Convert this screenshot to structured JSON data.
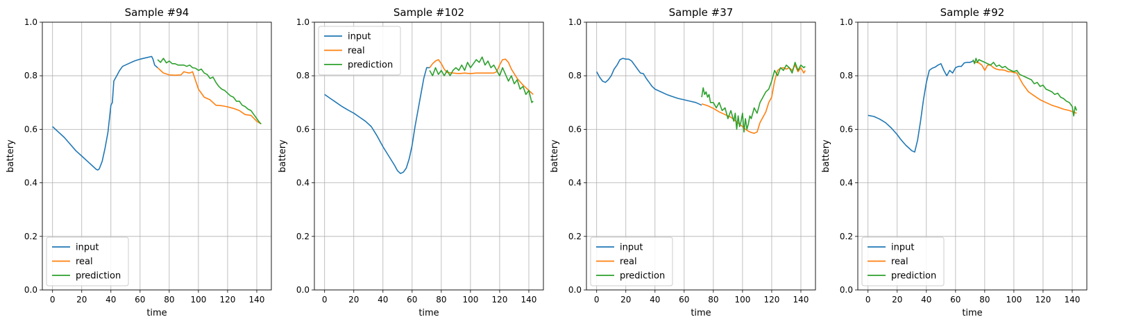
{
  "figure": {
    "xlabel": "time",
    "ylabel": "battery",
    "xlim": [
      -7,
      150
    ],
    "ylim": [
      0,
      1
    ],
    "xticks": [
      "0",
      "20",
      "40",
      "60",
      "80",
      "100",
      "120",
      "140"
    ],
    "yticks": [
      "0.0",
      "0.2",
      "0.4",
      "0.6",
      "0.8",
      "1.0"
    ],
    "grid": true,
    "colors": {
      "input": "#1f77b4",
      "real": "#ff7f0e",
      "prediction": "#2ca02c"
    },
    "legend_labels": [
      "input",
      "real",
      "prediction"
    ]
  },
  "chart_data": [
    {
      "type": "line",
      "title": "Sample #94",
      "legend": "lower-left",
      "series": [
        {
          "name": "input",
          "x": [
            0,
            4,
            8,
            12,
            16,
            20,
            24,
            28,
            30,
            31,
            32,
            34,
            36,
            38,
            40,
            41,
            42,
            44,
            46,
            48,
            52,
            56,
            60,
            64,
            68,
            69,
            70,
            72
          ],
          "y": [
            0.61,
            0.59,
            0.57,
            0.545,
            0.52,
            0.5,
            0.48,
            0.46,
            0.45,
            0.448,
            0.452,
            0.48,
            0.53,
            0.59,
            0.69,
            0.7,
            0.78,
            0.8,
            0.82,
            0.835,
            0.845,
            0.855,
            0.862,
            0.867,
            0.872,
            0.86,
            0.84,
            0.83
          ]
        },
        {
          "name": "real",
          "x": [
            72,
            74,
            76,
            80,
            84,
            88,
            90,
            92,
            94,
            96,
            100,
            104,
            108,
            112,
            116,
            120,
            124,
            128,
            132,
            136,
            140,
            143
          ],
          "y": [
            0.83,
            0.82,
            0.81,
            0.803,
            0.802,
            0.803,
            0.815,
            0.812,
            0.81,
            0.815,
            0.75,
            0.72,
            0.71,
            0.69,
            0.688,
            0.684,
            0.678,
            0.67,
            0.655,
            0.652,
            0.63,
            0.62
          ]
        },
        {
          "name": "prediction",
          "x": [
            72,
            74,
            76,
            78,
            80,
            82,
            84,
            86,
            88,
            90,
            92,
            94,
            96,
            98,
            100,
            102,
            104,
            106,
            108,
            110,
            112,
            114,
            116,
            118,
            120,
            122,
            124,
            126,
            128,
            130,
            132,
            134,
            136,
            138,
            140,
            142,
            143
          ],
          "y": [
            0.86,
            0.85,
            0.865,
            0.848,
            0.855,
            0.845,
            0.845,
            0.84,
            0.84,
            0.84,
            0.835,
            0.84,
            0.83,
            0.828,
            0.82,
            0.825,
            0.81,
            0.805,
            0.79,
            0.795,
            0.775,
            0.76,
            0.75,
            0.745,
            0.735,
            0.725,
            0.72,
            0.705,
            0.705,
            0.69,
            0.685,
            0.675,
            0.67,
            0.655,
            0.64,
            0.625,
            0.62
          ]
        }
      ]
    },
    {
      "type": "line",
      "title": "Sample #102",
      "legend": "upper-left",
      "series": [
        {
          "name": "input",
          "x": [
            0,
            4,
            8,
            12,
            16,
            20,
            24,
            28,
            32,
            36,
            40,
            44,
            48,
            50,
            52,
            54,
            56,
            58,
            60,
            62,
            64,
            66,
            68,
            70,
            72
          ],
          "y": [
            0.73,
            0.715,
            0.7,
            0.685,
            0.672,
            0.66,
            0.645,
            0.63,
            0.61,
            0.575,
            0.535,
            0.5,
            0.465,
            0.445,
            0.435,
            0.44,
            0.455,
            0.49,
            0.54,
            0.61,
            0.67,
            0.73,
            0.79,
            0.83,
            0.83
          ]
        },
        {
          "name": "real",
          "x": [
            72,
            74,
            76,
            78,
            80,
            82,
            84,
            88,
            92,
            96,
            100,
            104,
            108,
            112,
            116,
            118,
            120,
            122,
            124,
            126,
            128,
            132,
            136,
            140,
            143
          ],
          "y": [
            0.83,
            0.845,
            0.855,
            0.86,
            0.845,
            0.825,
            0.812,
            0.81,
            0.808,
            0.81,
            0.808,
            0.81,
            0.81,
            0.81,
            0.81,
            0.815,
            0.84,
            0.86,
            0.862,
            0.85,
            0.825,
            0.79,
            0.765,
            0.745,
            0.73
          ]
        },
        {
          "name": "prediction",
          "x": [
            72,
            74,
            76,
            78,
            80,
            82,
            84,
            86,
            88,
            90,
            92,
            94,
            96,
            98,
            100,
            102,
            104,
            106,
            108,
            110,
            112,
            114,
            116,
            118,
            120,
            122,
            124,
            126,
            128,
            130,
            132,
            134,
            136,
            138,
            140,
            142,
            143
          ],
          "y": [
            0.82,
            0.8,
            0.83,
            0.805,
            0.82,
            0.8,
            0.82,
            0.8,
            0.82,
            0.83,
            0.82,
            0.84,
            0.82,
            0.85,
            0.83,
            0.845,
            0.86,
            0.85,
            0.87,
            0.84,
            0.855,
            0.83,
            0.84,
            0.82,
            0.8,
            0.83,
            0.805,
            0.78,
            0.8,
            0.77,
            0.785,
            0.75,
            0.76,
            0.73,
            0.745,
            0.7,
            0.705
          ]
        }
      ]
    },
    {
      "type": "line",
      "title": "Sample #37",
      "legend": "lower-left",
      "series": [
        {
          "name": "input",
          "x": [
            0,
            2,
            4,
            6,
            8,
            10,
            12,
            14,
            16,
            18,
            20,
            22,
            24,
            26,
            28,
            30,
            32,
            34,
            36,
            38,
            40,
            44,
            48,
            52,
            56,
            60,
            64,
            68,
            72
          ],
          "y": [
            0.815,
            0.795,
            0.78,
            0.775,
            0.785,
            0.8,
            0.825,
            0.84,
            0.86,
            0.865,
            0.862,
            0.862,
            0.855,
            0.84,
            0.825,
            0.81,
            0.808,
            0.79,
            0.775,
            0.76,
            0.75,
            0.74,
            0.73,
            0.722,
            0.715,
            0.71,
            0.705,
            0.7,
            0.69
          ]
        },
        {
          "name": "real",
          "x": [
            72,
            76,
            80,
            84,
            88,
            92,
            96,
            100,
            102,
            104,
            106,
            108,
            110,
            112,
            114,
            116,
            118,
            120,
            122,
            124,
            126,
            128,
            130,
            132,
            134,
            136,
            138,
            140,
            142,
            143
          ],
          "y": [
            0.695,
            0.688,
            0.678,
            0.665,
            0.655,
            0.645,
            0.628,
            0.61,
            0.6,
            0.593,
            0.588,
            0.585,
            0.59,
            0.625,
            0.645,
            0.665,
            0.7,
            0.72,
            0.78,
            0.82,
            0.828,
            0.83,
            0.825,
            0.83,
            0.82,
            0.84,
            0.815,
            0.83,
            0.81,
            0.82
          ]
        },
        {
          "name": "prediction",
          "x": [
            72,
            73,
            74,
            75,
            76,
            77,
            78,
            80,
            82,
            84,
            86,
            88,
            90,
            92,
            94,
            95,
            96,
            97,
            98,
            99,
            100,
            101,
            102,
            103,
            104,
            105,
            106,
            108,
            110,
            112,
            114,
            116,
            118,
            120,
            122,
            124,
            126,
            128,
            130,
            132,
            134,
            136,
            138,
            140,
            142,
            143
          ],
          "y": [
            0.72,
            0.755,
            0.73,
            0.74,
            0.72,
            0.73,
            0.7,
            0.7,
            0.68,
            0.7,
            0.67,
            0.68,
            0.64,
            0.67,
            0.63,
            0.66,
            0.6,
            0.65,
            0.61,
            0.63,
            0.66,
            0.59,
            0.64,
            0.6,
            0.62,
            0.65,
            0.64,
            0.68,
            0.66,
            0.7,
            0.72,
            0.74,
            0.75,
            0.78,
            0.82,
            0.8,
            0.83,
            0.82,
            0.84,
            0.83,
            0.81,
            0.85,
            0.82,
            0.84,
            0.83,
            0.835
          ]
        }
      ]
    },
    {
      "type": "line",
      "title": "Sample #92",
      "legend": "lower-left",
      "series": [
        {
          "name": "input",
          "x": [
            0,
            4,
            8,
            12,
            16,
            20,
            22,
            24,
            26,
            28,
            30,
            32,
            34,
            36,
            38,
            40,
            42,
            44,
            46,
            48,
            50,
            52,
            54,
            56,
            58,
            60,
            62,
            64,
            66,
            68,
            70,
            72
          ],
          "y": [
            0.652,
            0.648,
            0.638,
            0.625,
            0.605,
            0.58,
            0.565,
            0.552,
            0.54,
            0.53,
            0.52,
            0.515,
            0.56,
            0.63,
            0.71,
            0.775,
            0.82,
            0.828,
            0.832,
            0.84,
            0.845,
            0.82,
            0.8,
            0.82,
            0.81,
            0.83,
            0.835,
            0.835,
            0.848,
            0.85,
            0.85,
            0.855
          ]
        },
        {
          "name": "real",
          "x": [
            72,
            74,
            76,
            78,
            80,
            82,
            84,
            86,
            88,
            90,
            92,
            94,
            96,
            98,
            100,
            102,
            104,
            106,
            108,
            110,
            114,
            118,
            122,
            126,
            130,
            134,
            138,
            143
          ],
          "y": [
            0.855,
            0.85,
            0.848,
            0.84,
            0.82,
            0.84,
            0.84,
            0.83,
            0.825,
            0.822,
            0.822,
            0.82,
            0.815,
            0.815,
            0.812,
            0.81,
            0.79,
            0.77,
            0.755,
            0.74,
            0.725,
            0.71,
            0.7,
            0.69,
            0.683,
            0.675,
            0.67,
            0.66
          ]
        },
        {
          "name": "prediction",
          "x": [
            72,
            73,
            74,
            75,
            76,
            78,
            80,
            82,
            84,
            86,
            88,
            90,
            92,
            94,
            96,
            98,
            100,
            102,
            104,
            106,
            108,
            110,
            112,
            114,
            116,
            118,
            120,
            122,
            124,
            126,
            128,
            130,
            132,
            134,
            136,
            138,
            140,
            141,
            142,
            143
          ],
          "y": [
            0.86,
            0.845,
            0.865,
            0.85,
            0.86,
            0.855,
            0.85,
            0.845,
            0.84,
            0.85,
            0.835,
            0.84,
            0.83,
            0.835,
            0.825,
            0.82,
            0.815,
            0.82,
            0.805,
            0.8,
            0.795,
            0.79,
            0.785,
            0.77,
            0.775,
            0.76,
            0.765,
            0.75,
            0.745,
            0.74,
            0.73,
            0.735,
            0.72,
            0.715,
            0.705,
            0.7,
            0.685,
            0.65,
            0.685,
            0.67
          ]
        }
      ]
    }
  ]
}
